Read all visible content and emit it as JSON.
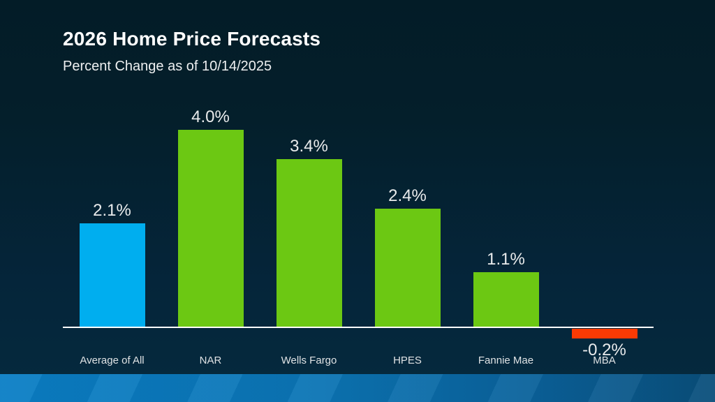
{
  "slide": {
    "title": "2026 Home Price Forecasts",
    "subtitle": "Percent Change as of 10/14/2025"
  },
  "colors": {
    "background_top": "#031c27",
    "background_bottom": "#052a3e",
    "axis_line": "#ffffff",
    "footer_bar_left": "#0a7ec5",
    "footer_bar_right": "#094e7a",
    "highlight_bar": "#00AEEF",
    "positive_bar": "#6CC813",
    "negative_bar": "#FA3A04"
  },
  "chart_data": {
    "type": "bar",
    "title": "2026 Home Price Forecasts",
    "subtitle": "Percent Change as of 10/14/2025",
    "categories": [
      "Average of All",
      "NAR",
      "Wells Fargo",
      "HPES",
      "Fannie Mae",
      "MBA"
    ],
    "values": [
      2.1,
      4.0,
      3.4,
      2.4,
      1.1,
      -0.2
    ],
    "points": [
      {
        "category": "Average of All",
        "value": 2.1,
        "label": "2.1%",
        "color": "#00AEEF"
      },
      {
        "category": "NAR",
        "value": 4.0,
        "label": "4.0%",
        "color": "#6CC813"
      },
      {
        "category": "Wells Fargo",
        "value": 3.4,
        "label": "3.4%",
        "color": "#6CC813"
      },
      {
        "category": "HPES",
        "value": 2.4,
        "label": "2.4%",
        "color": "#6CC813"
      },
      {
        "category": "Fannie Mae",
        "value": 1.1,
        "label": "1.1%",
        "color": "#6CC813"
      },
      {
        "category": "MBA",
        "value": -0.2,
        "label": "-0.2%",
        "color": "#FA3A04"
      }
    ],
    "xlabel": "",
    "ylabel": "",
    "ylim": [
      -0.5,
      4.5
    ],
    "grid": false,
    "legend": false,
    "baseline": 0
  }
}
